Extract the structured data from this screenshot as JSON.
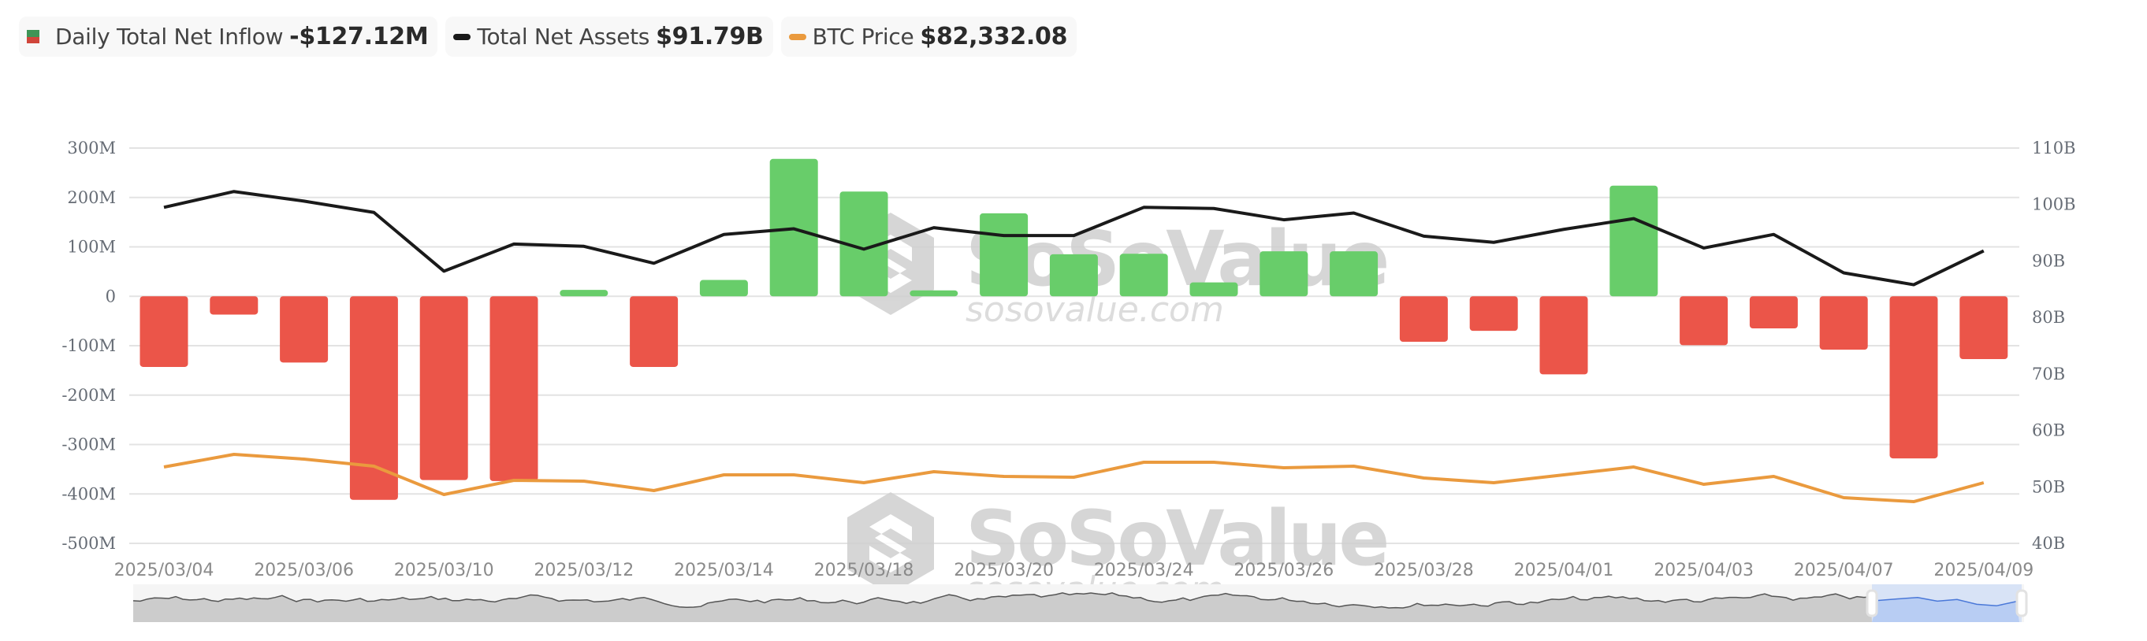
{
  "legend": [
    {
      "label": "Daily Total Net Inflow",
      "value": "-$127.12M",
      "icon": "green-red-bar-icon"
    },
    {
      "label": "Total Net Assets",
      "value": "$91.79B",
      "icon": "black-line-icon",
      "color": "#1a1a1a"
    },
    {
      "label": "BTC Price",
      "value": "$82,332.08",
      "icon": "orange-line-icon",
      "color": "#ea9a3e"
    }
  ],
  "colors": {
    "positive": "#68cd6a",
    "negative": "#eb5549",
    "assets_line": "#1a1a1a",
    "price_line": "#ea9a3e",
    "grid": "#e3e3e3",
    "navigator_bg": "#f5f5f5",
    "navigator_fill": "#cccccc",
    "navigator_line": "#555555",
    "navigator_selected_bg": "#d8e3f6",
    "navigator_selected_fill": "#b8cdf3",
    "navigator_selected_line": "#4a78d8"
  },
  "watermark": {
    "brand": "SoSoValue",
    "site": "sosovalue.com"
  },
  "chart_data": {
    "type": "bar",
    "title": "",
    "xlabel": "",
    "ylabel": "Daily Total Net Inflow",
    "ylim": [
      -500,
      300
    ],
    "y_unit": "M",
    "y2lim": [
      40,
      110
    ],
    "y2_unit": "B",
    "grid": true,
    "legend_position": "top-left",
    "left_ticks": [
      "300M",
      "200M",
      "100M",
      "0",
      "-100M",
      "-200M",
      "-300M",
      "-400M",
      "-500M"
    ],
    "right_ticks": [
      "110B",
      "100B",
      "90B",
      "80B",
      "70B",
      "60B",
      "50B",
      "40B"
    ],
    "x_tick_labels": [
      "2025/03/04",
      "2025/03/06",
      "2025/03/10",
      "2025/03/12",
      "2025/03/14",
      "2025/03/18",
      "2025/03/20",
      "2025/03/24",
      "2025/03/26",
      "2025/03/28",
      "2025/04/01",
      "2025/04/03",
      "2025/04/07",
      "2025/04/09"
    ],
    "categories": [
      "2025/03/04",
      "2025/03/05",
      "2025/03/06",
      "2025/03/07",
      "2025/03/10",
      "2025/03/11",
      "2025/03/12",
      "2025/03/13",
      "2025/03/14",
      "2025/03/17",
      "2025/03/18",
      "2025/03/19",
      "2025/03/20",
      "2025/03/21",
      "2025/03/24",
      "2025/03/25",
      "2025/03/26",
      "2025/03/27",
      "2025/03/28",
      "2025/03/31",
      "2025/04/01",
      "2025/04/02",
      "2025/04/03",
      "2025/04/04",
      "2025/04/07",
      "2025/04/08",
      "2025/04/09"
    ],
    "series": [
      {
        "name": "Daily Total Net Inflow",
        "type": "bar",
        "axis": "left",
        "unit": "M USD",
        "values": [
          -143,
          -37,
          -134,
          -412,
          -372,
          -374,
          13,
          -143,
          33,
          278,
          212,
          12,
          168,
          85,
          86,
          28,
          91,
          91,
          -92,
          -70,
          -158,
          224,
          -99,
          -65,
          -108,
          -328,
          -127.12
        ]
      },
      {
        "name": "Total Net Assets",
        "type": "line",
        "axis": "right",
        "unit": "B USD",
        "values": [
          99.5,
          102.3,
          100.6,
          98.6,
          88.2,
          93.0,
          92.6,
          89.6,
          94.7,
          95.7,
          92.1,
          95.9,
          94.5,
          94.5,
          99.5,
          99.3,
          97.3,
          98.5,
          94.4,
          93.3,
          95.6,
          97.5,
          92.3,
          94.7,
          87.9,
          85.8,
          91.79
        ]
      },
      {
        "name": "BTC Price",
        "type": "line",
        "axis": "hidden",
        "unit": "USD",
        "values": [
          86730,
          90250,
          88930,
          86950,
          79030,
          82990,
          82770,
          80130,
          84530,
          84530,
          82332,
          85410,
          84090,
          83870,
          88050,
          88050,
          86510,
          86950,
          83650,
          82332,
          84530,
          86730,
          81890,
          84090,
          78150,
          77050,
          82332.08
        ]
      }
    ]
  },
  "navigator": {
    "range_start_label": "",
    "range_end_label": ""
  }
}
